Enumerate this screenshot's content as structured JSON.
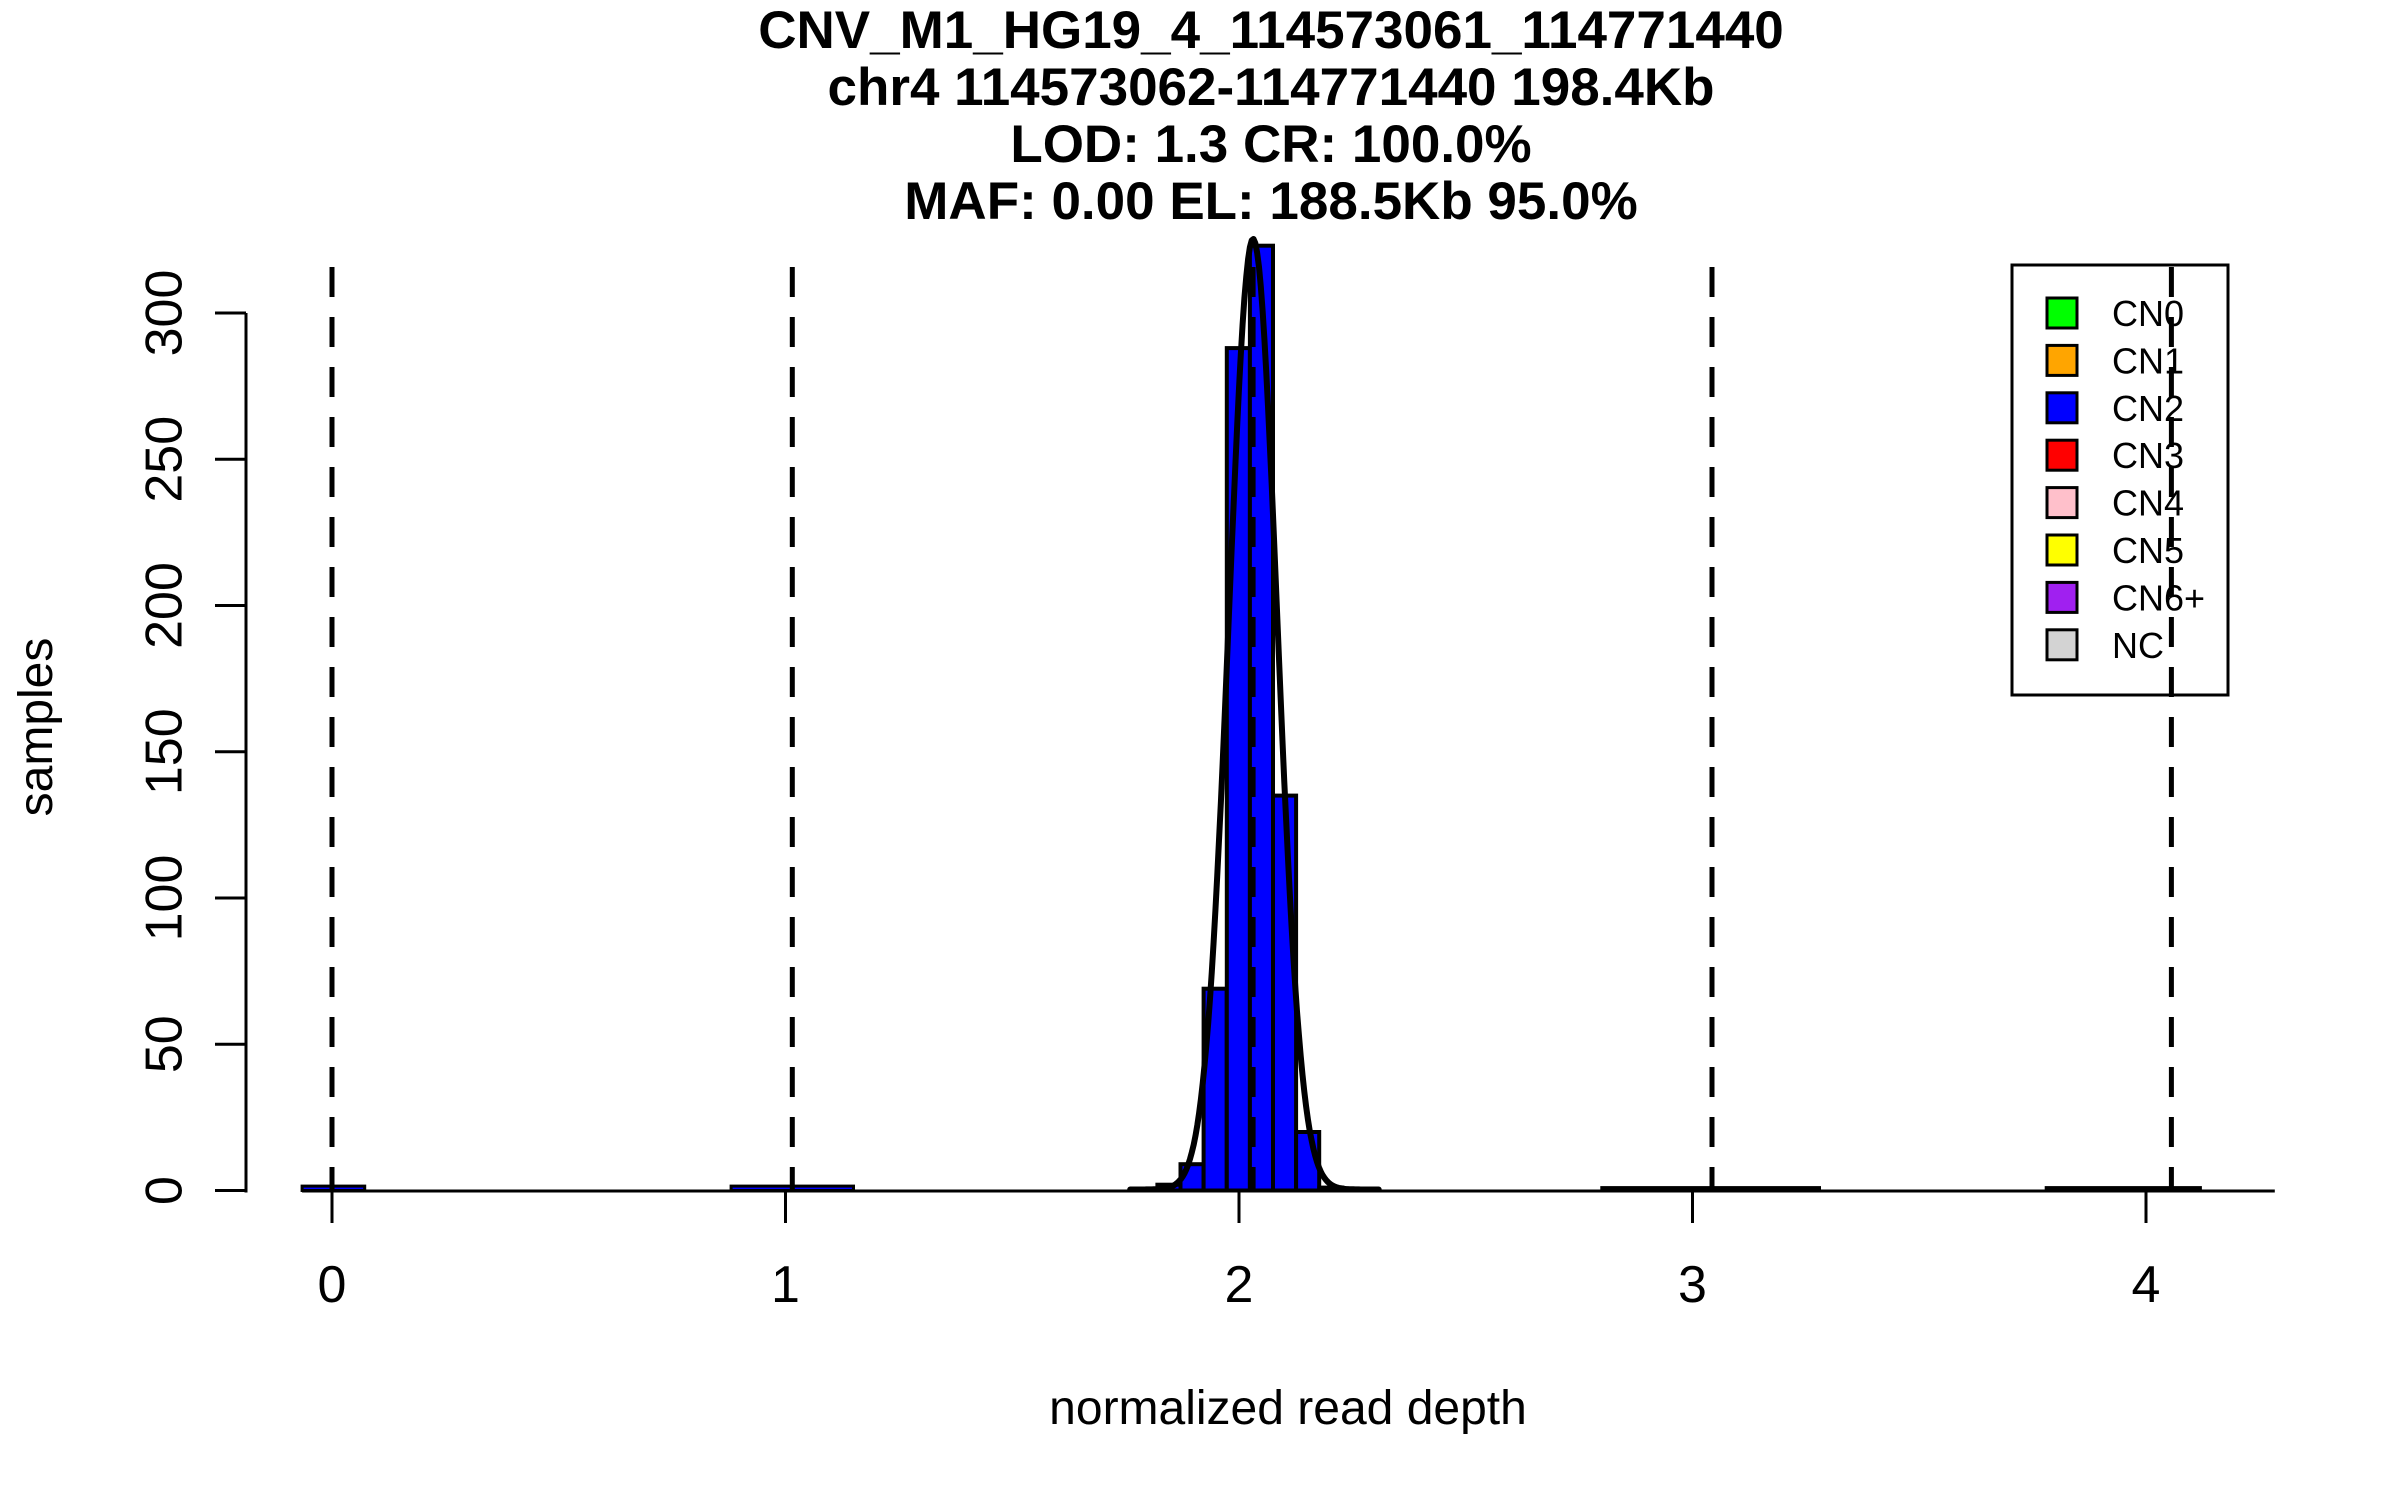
{
  "title": {
    "line1": "CNV_M1_HG19_4_114573061_114771440",
    "line2": "chr4 114573062-114771440 198.4Kb",
    "line3": "LOD: 1.3 CR: 100.0%",
    "line4": "MAF: 0.00 EL: 188.5Kb 95.0%"
  },
  "chart_data": {
    "type": "bar",
    "subtype": "histogram-with-density-overlay",
    "xlabel": "normalized read depth",
    "ylabel": "samples",
    "x_tick_labels": [
      "0",
      "1",
      "2",
      "3",
      "4"
    ],
    "x_tick_values": [
      0,
      1,
      2,
      3,
      4
    ],
    "y_tick_labels": [
      "0",
      "50",
      "100",
      "150",
      "200",
      "250",
      "300"
    ],
    "y_tick_values": [
      0,
      50,
      100,
      150,
      200,
      250,
      300
    ],
    "x_range": [
      -0.066,
      4.284
    ],
    "y_axis_range": [
      0,
      300
    ],
    "grid": false,
    "bar_fill": "#0000FF",
    "bar_stroke": "#000000",
    "histogram_bins": {
      "start": 1.82,
      "width": 0.051,
      "counts": [
        2,
        9,
        69,
        288,
        323,
        135,
        20,
        1
      ]
    },
    "baseline_bumps": [
      {
        "x0": -0.066,
        "x1": 0.072,
        "count": 1.5
      },
      {
        "x0": 0.88,
        "x1": 1.15,
        "count": 1.5
      },
      {
        "x0": 2.8,
        "x1": 3.28,
        "count": 1
      },
      {
        "x0": 3.78,
        "x1": 4.12,
        "count": 1
      }
    ],
    "density_curve": {
      "mean": 2.031,
      "sd": 0.053,
      "peak": 325,
      "x_min": 1.76,
      "x_max": 2.31
    },
    "cn_boundary_dashed_lines_x": [
      0.0,
      1.015,
      2.031,
      3.043,
      4.056
    ],
    "legend_position": "top-right",
    "legend": [
      {
        "label": "CN0",
        "color": "#00FF00"
      },
      {
        "label": "CN1",
        "color": "#FFA500"
      },
      {
        "label": "CN2",
        "color": "#0000FF"
      },
      {
        "label": "CN3",
        "color": "#FF0000"
      },
      {
        "label": "CN4",
        "color": "#FFC0CB"
      },
      {
        "label": "CN5",
        "color": "#FFFF00"
      },
      {
        "label": "CN6+",
        "color": "#A020F0"
      },
      {
        "label": "NC",
        "color": "#D3D3D3"
      }
    ]
  }
}
